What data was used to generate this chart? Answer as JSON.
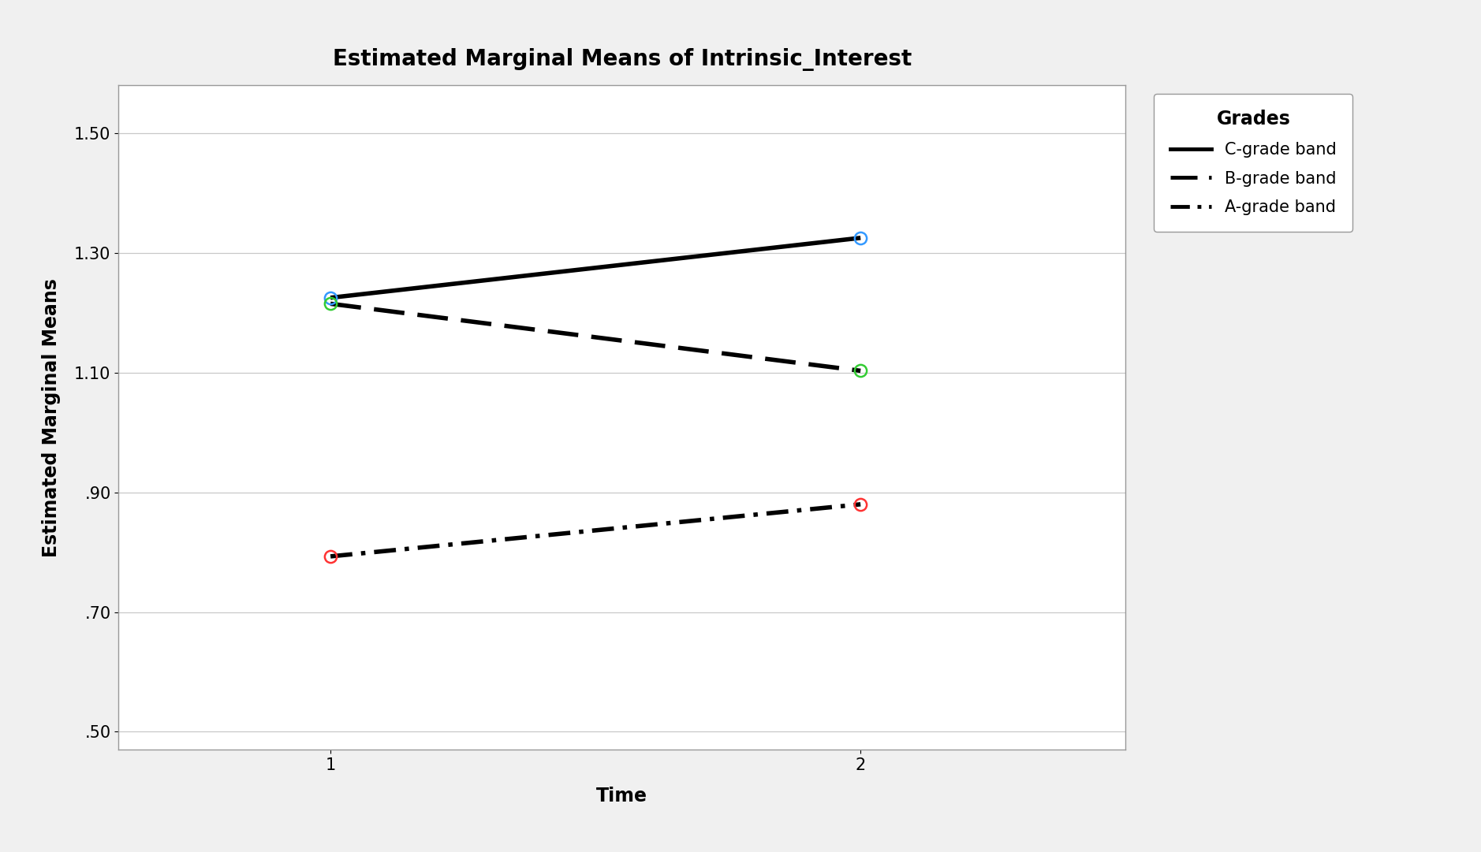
{
  "title": "Estimated Marginal Means of Intrinsic_Interest",
  "xlabel": "Time",
  "ylabel": "Estimated Marginal Means",
  "legend_title": "Grades",
  "xlim": [
    0.6,
    2.5
  ],
  "ylim": [
    0.47,
    1.58
  ],
  "yticks": [
    0.5,
    0.7,
    0.9,
    1.1,
    1.3,
    1.5
  ],
  "ytick_labels": [
    "1.50",
    "1.30",
    "1.10",
    ".90",
    ".70",
    ".50"
  ],
  "ytick_values_display": [
    ".50",
    ".70",
    ".90",
    "1.10",
    "1.30",
    "1.50"
  ],
  "xticks": [
    1,
    2
  ],
  "xtick_labels": [
    "1",
    "2"
  ],
  "C_grade": {
    "x": [
      1,
      2
    ],
    "y": [
      1.225,
      1.325
    ],
    "label": "C-grade band",
    "linestyle": "solid",
    "linewidth": 4.0,
    "marker_colors": [
      "#0000cc",
      "#0000cc"
    ]
  },
  "B_grade": {
    "x": [
      1,
      2
    ],
    "y": [
      1.215,
      1.103
    ],
    "label": "B-grade band",
    "linestyle": "dashed",
    "linewidth": 4.0,
    "marker_colors": [
      "#006600",
      "#006600"
    ]
  },
  "A_grade": {
    "x": [
      1,
      2
    ],
    "y": [
      0.793,
      0.88
    ],
    "label": "A-grade band",
    "linestyle": "dashdot",
    "linewidth": 4.0,
    "marker_colors": [
      "#cc0000",
      "#cc0000"
    ]
  },
  "plot_bg": "#ffffff",
  "fig_bg": "#f0f0f0",
  "grid_color": "#c8c8c8",
  "spine_color": "#999999",
  "title_fontsize": 20,
  "axis_label_fontsize": 17,
  "tick_fontsize": 15,
  "legend_fontsize": 15,
  "legend_title_fontsize": 17
}
